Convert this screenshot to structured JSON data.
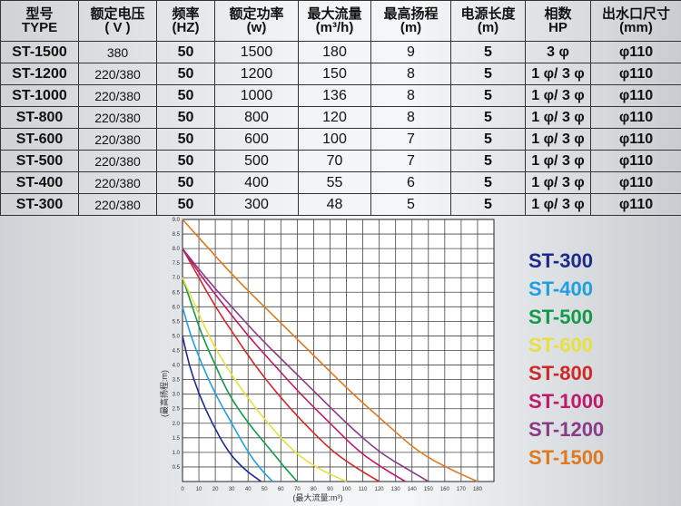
{
  "table": {
    "headers": [
      {
        "line1": "型号",
        "line2": "TYPE"
      },
      {
        "line1": "额定电压",
        "line2": "( V )"
      },
      {
        "line1": "频率",
        "line2": "(HZ)"
      },
      {
        "line1": "额定功率",
        "line2": "(w)"
      },
      {
        "line1": "最大流量",
        "line2": "(m³/h)"
      },
      {
        "line1": "最高扬程",
        "line2": "(m)"
      },
      {
        "line1": "电源长度",
        "line2": "(m)"
      },
      {
        "line1": "相数",
        "line2": "HP"
      },
      {
        "line1": "出水口尺寸",
        "line2": "(mm)"
      }
    ],
    "rows": [
      [
        "ST-1500",
        "380",
        "50",
        "1500",
        "180",
        "9",
        "5",
        "3 φ",
        "φ110"
      ],
      [
        "ST-1200",
        "220/380",
        "50",
        "1200",
        "150",
        "8",
        "5",
        "1 φ/ 3 φ",
        "φ110"
      ],
      [
        "ST-1000",
        "220/380",
        "50",
        "1000",
        "136",
        "8",
        "5",
        "1 φ/ 3 φ",
        "φ110"
      ],
      [
        "ST-800",
        "220/380",
        "50",
        "800",
        "120",
        "8",
        "5",
        "1 φ/ 3 φ",
        "φ110"
      ],
      [
        "ST-600",
        "220/380",
        "50",
        "600",
        "100",
        "7",
        "5",
        "1 φ/ 3 φ",
        "φ110"
      ],
      [
        "ST-500",
        "220/380",
        "50",
        "500",
        "70",
        "7",
        "5",
        "1 φ/ 3 φ",
        "φ110"
      ],
      [
        "ST-400",
        "220/380",
        "50",
        "400",
        "55",
        "6",
        "5",
        "1 φ/ 3 φ",
        "φ110"
      ],
      [
        "ST-300",
        "220/380",
        "50",
        "300",
        "48",
        "5",
        "5",
        "1 φ/ 3 φ",
        "φ110"
      ]
    ]
  },
  "chart_data": {
    "type": "line",
    "xlabel": "(最大流量:m³)",
    "ylabel": "(最高扬程:m)",
    "xlim": [
      0,
      190
    ],
    "ylim": [
      0,
      9
    ],
    "x_ticks": [
      0,
      10,
      20,
      30,
      40,
      50,
      60,
      70,
      80,
      90,
      100,
      110,
      120,
      130,
      140,
      150,
      160,
      170,
      180
    ],
    "y_ticks": [
      0.5,
      1.0,
      1.5,
      2.0,
      2.5,
      3.0,
      3.5,
      4.0,
      4.5,
      5.0,
      5.5,
      6.0,
      6.5,
      7.0,
      7.5,
      8.0,
      8.5,
      9.0
    ],
    "grid": true,
    "legend_position": "right",
    "series": [
      {
        "name": "ST-300",
        "color": "#1c2a8c",
        "points": [
          [
            0,
            5
          ],
          [
            4,
            4
          ],
          [
            10,
            3
          ],
          [
            18,
            2
          ],
          [
            28,
            1
          ],
          [
            38,
            0.4
          ],
          [
            48,
            0
          ]
        ]
      },
      {
        "name": "ST-400",
        "color": "#1ea0e0",
        "points": [
          [
            0,
            6
          ],
          [
            5,
            5
          ],
          [
            12,
            4
          ],
          [
            20,
            3
          ],
          [
            30,
            2
          ],
          [
            40,
            1
          ],
          [
            48,
            0.4
          ],
          [
            55,
            0
          ]
        ]
      },
      {
        "name": "ST-500",
        "color": "#119a4a",
        "points": [
          [
            0,
            7
          ],
          [
            6,
            6
          ],
          [
            12,
            5
          ],
          [
            20,
            4
          ],
          [
            28,
            3
          ],
          [
            40,
            2
          ],
          [
            55,
            1
          ],
          [
            62,
            0.5
          ],
          [
            70,
            0
          ]
        ]
      },
      {
        "name": "ST-600",
        "color": "#e8e040",
        "points": [
          [
            0,
            7
          ],
          [
            8,
            6
          ],
          [
            16,
            5
          ],
          [
            26,
            4
          ],
          [
            38,
            3
          ],
          [
            52,
            2
          ],
          [
            68,
            1
          ],
          [
            84,
            0.4
          ],
          [
            100,
            0
          ]
        ]
      },
      {
        "name": "ST-800",
        "color": "#d02828",
        "points": [
          [
            0,
            8
          ],
          [
            10,
            7
          ],
          [
            20,
            6
          ],
          [
            32,
            5
          ],
          [
            44,
            4
          ],
          [
            58,
            3
          ],
          [
            74,
            2
          ],
          [
            92,
            1
          ],
          [
            108,
            0.4
          ],
          [
            120,
            0
          ]
        ]
      },
      {
        "name": "ST-1000",
        "color": "#c0186a",
        "points": [
          [
            0,
            8
          ],
          [
            12,
            7
          ],
          [
            26,
            6
          ],
          [
            40,
            5
          ],
          [
            56,
            4
          ],
          [
            72,
            3
          ],
          [
            90,
            2
          ],
          [
            108,
            1
          ],
          [
            124,
            0.4
          ],
          [
            136,
            0
          ]
        ]
      },
      {
        "name": "ST-1200",
        "color": "#8a3a88",
        "points": [
          [
            0,
            8
          ],
          [
            14,
            7
          ],
          [
            30,
            6
          ],
          [
            46,
            5
          ],
          [
            64,
            4
          ],
          [
            82,
            3
          ],
          [
            100,
            2
          ],
          [
            120,
            1
          ],
          [
            138,
            0.4
          ],
          [
            150,
            0
          ]
        ]
      },
      {
        "name": "ST-1500",
        "color": "#e07820",
        "points": [
          [
            0,
            9
          ],
          [
            16,
            8
          ],
          [
            32,
            7
          ],
          [
            50,
            6
          ],
          [
            68,
            5
          ],
          [
            86,
            4
          ],
          [
            104,
            3
          ],
          [
            124,
            2
          ],
          [
            144,
            1
          ],
          [
            164,
            0.4
          ],
          [
            180,
            0
          ]
        ]
      }
    ]
  }
}
